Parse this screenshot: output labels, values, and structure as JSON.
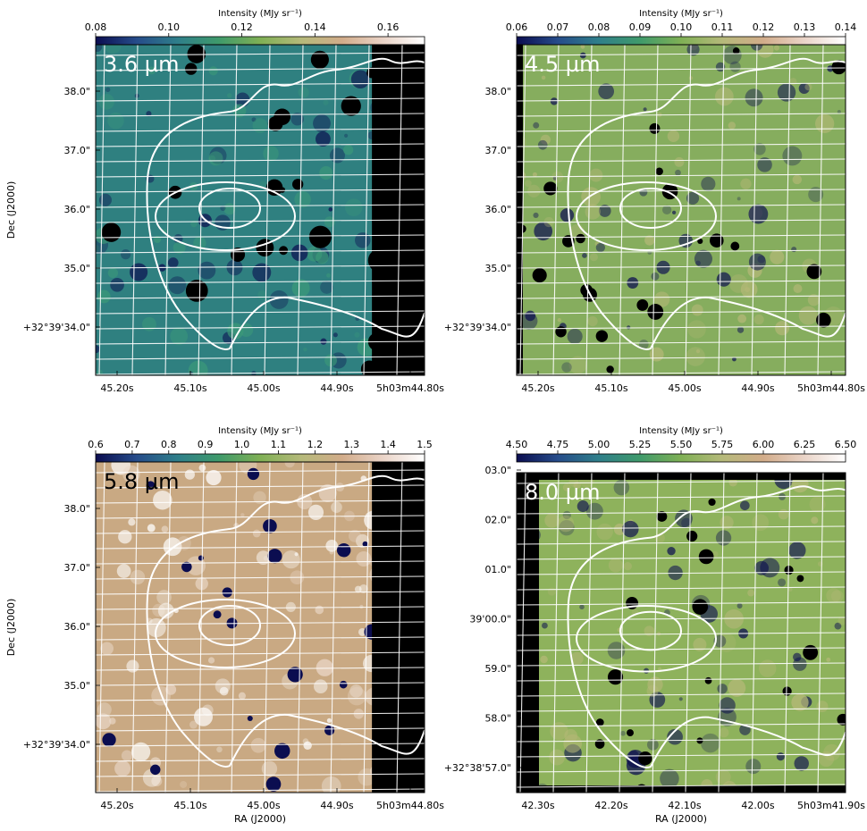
{
  "figure": {
    "colormap": [
      "#0b0d50",
      "#264c8a",
      "#2f7f8a",
      "#3f9a6b",
      "#7fb055",
      "#b5b97a",
      "#d2ac8a",
      "#ead4c8",
      "#ffffff"
    ]
  },
  "chart_data": [
    {
      "type": "heatmap",
      "band_label": "3.6 µm",
      "colorbar_label": "Intensity (MJy sr⁻¹)",
      "colorbar_range": [
        0.08,
        0.17
      ],
      "colorbar_ticks": [
        {
          "v": 0.08,
          "t": "0.08"
        },
        {
          "v": 0.1,
          "t": "0.10"
        },
        {
          "v": 0.12,
          "t": "0.12"
        },
        {
          "v": 0.14,
          "t": "0.14"
        },
        {
          "v": 0.16,
          "t": "0.16"
        }
      ],
      "xlabel": "",
      "ylabel": "Dec (J2000)",
      "xticks": [
        "45.20s",
        "45.10s",
        "45.00s",
        "44.90s",
        "5h03m44.80s"
      ],
      "yticks": [
        "38.0\"",
        "37.0\"",
        "36.0\"",
        "35.0\"",
        "+32°39'34.0\""
      ],
      "field_color": "#2f8080",
      "blank_region": "right"
    },
    {
      "type": "heatmap",
      "band_label": "4.5 µm",
      "colorbar_label": "Intensity (MJy sr⁻¹)",
      "colorbar_range": [
        0.06,
        0.14
      ],
      "colorbar_ticks": [
        {
          "v": 0.06,
          "t": "0.06"
        },
        {
          "v": 0.07,
          "t": "0.07"
        },
        {
          "v": 0.08,
          "t": "0.08"
        },
        {
          "v": 0.09,
          "t": "0.09"
        },
        {
          "v": 0.1,
          "t": "0.10"
        },
        {
          "v": 0.11,
          "t": "0.11"
        },
        {
          "v": 0.12,
          "t": "0.12"
        },
        {
          "v": 0.13,
          "t": "0.13"
        },
        {
          "v": 0.14,
          "t": "0.14"
        }
      ],
      "xlabel": "",
      "ylabel": "",
      "xticks": [
        "45.20s",
        "45.10s",
        "45.00s",
        "44.90s",
        "5h03m44.80s"
      ],
      "yticks": [
        "38.0\"",
        "37.0\"",
        "36.0\"",
        "35.0\"",
        "+32°39'34.0\""
      ],
      "field_color": "#86ad5e",
      "blank_region": "left-strip"
    },
    {
      "type": "heatmap",
      "band_label": "5.8 µm",
      "colorbar_label": "Intensity (MJy sr⁻¹)",
      "colorbar_range": [
        0.6,
        1.5
      ],
      "colorbar_ticks": [
        {
          "v": 0.6,
          "t": "0.6"
        },
        {
          "v": 0.7,
          "t": "0.7"
        },
        {
          "v": 0.8,
          "t": "0.8"
        },
        {
          "v": 0.9,
          "t": "0.9"
        },
        {
          "v": 1.0,
          "t": "1.0"
        },
        {
          "v": 1.1,
          "t": "1.1"
        },
        {
          "v": 1.2,
          "t": "1.2"
        },
        {
          "v": 1.3,
          "t": "1.3"
        },
        {
          "v": 1.4,
          "t": "1.4"
        },
        {
          "v": 1.5,
          "t": "1.5"
        }
      ],
      "xlabel": "RA (J2000)",
      "ylabel": "Dec (J2000)",
      "xticks": [
        "45.20s",
        "45.10s",
        "45.00s",
        "44.90s",
        "5h03m44.80s"
      ],
      "yticks": [
        "38.0\"",
        "37.0\"",
        "36.0\"",
        "35.0\"",
        "+32°39'34.0\""
      ],
      "field_color": "#c9a983",
      "blank_region": "right"
    },
    {
      "type": "heatmap",
      "band_label": "8.0 µm",
      "colorbar_label": "Intensity (MJy sr⁻¹)",
      "colorbar_range": [
        4.5,
        6.5
      ],
      "colorbar_ticks": [
        {
          "v": 4.5,
          "t": "4.50"
        },
        {
          "v": 4.75,
          "t": "4.75"
        },
        {
          "v": 5.0,
          "t": "5.00"
        },
        {
          "v": 5.25,
          "t": "5.25"
        },
        {
          "v": 5.5,
          "t": "5.50"
        },
        {
          "v": 5.75,
          "t": "5.75"
        },
        {
          "v": 6.0,
          "t": "6.00"
        },
        {
          "v": 6.25,
          "t": "6.25"
        },
        {
          "v": 6.5,
          "t": "6.50"
        }
      ],
      "xlabel": "RA (J2000)",
      "ylabel": "",
      "xticks": [
        "42.30s",
        "42.20s",
        "42.10s",
        "42.00s",
        "5h03m41.90s"
      ],
      "yticks": [
        "03.0\"",
        "02.0\"",
        "01.0\"",
        "39'00.0\"",
        "59.0\"",
        "58.0\"",
        "+32°38'57.0\""
      ],
      "field_color": "#8eb25c",
      "blank_region": "left"
    }
  ]
}
